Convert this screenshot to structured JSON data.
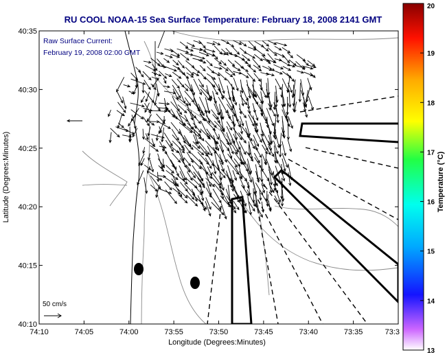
{
  "chart_data": {
    "type": "vector-field",
    "title": "RU COOL  NOAA-15  Sea Surface Temperature:  February 18, 2008 2141 GMT",
    "subtitle_lines": [
      "Raw Surface Current:",
      "February 19, 2008 02:00 GMT"
    ],
    "xlabel": "Longitude (Degrees:Minutes)",
    "ylabel": "Latitude (Degrees:Minutes)",
    "x_ticks": [
      "74:10",
      "74:05",
      "74:00",
      "73:55",
      "73:50",
      "73:45",
      "73:40",
      "73:35",
      "73:3"
    ],
    "y_ticks": [
      "40:10",
      "40:15",
      "40:20",
      "40:25",
      "40:30",
      "40:35"
    ],
    "xlim": [
      -74.1667,
      -73.5
    ],
    "ylim": [
      40.1667,
      40.5833
    ],
    "scale_label": "50 cm/s",
    "colorbar": {
      "label": "Temperature (°C)",
      "min": 13,
      "max": 20,
      "ticks": [
        13,
        14,
        15,
        16,
        17,
        18,
        19,
        20
      ]
    }
  }
}
